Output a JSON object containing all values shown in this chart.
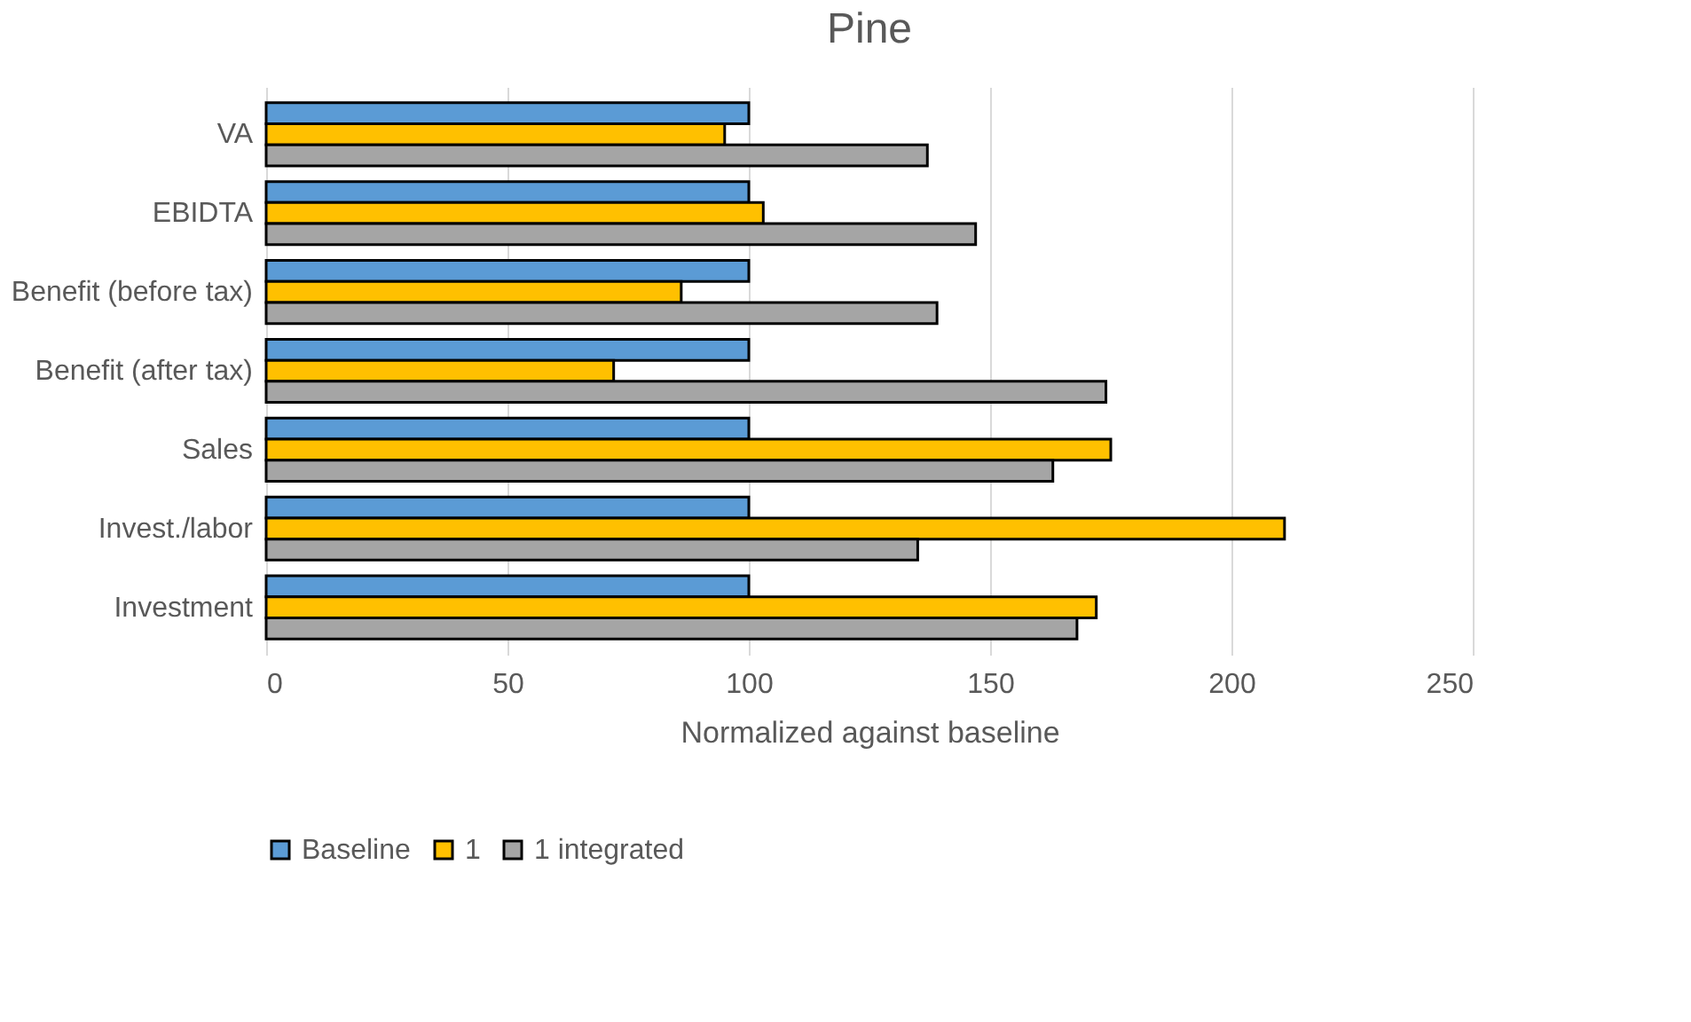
{
  "chart_data": {
    "type": "bar",
    "orientation": "horizontal",
    "title": "Pine",
    "xlabel": "Normalized against baseline",
    "categories": [
      "VA",
      "EBIDTA",
      "Benefit (before tax)",
      "Benefit (after tax)",
      "Sales",
      "Invest./labor",
      "Investment"
    ],
    "series": [
      {
        "name": "Baseline",
        "color": "#5b9bd5",
        "values": [
          100,
          100,
          100,
          100,
          100,
          100,
          100
        ]
      },
      {
        "name": "1",
        "color": "#ffc000",
        "values": [
          95,
          103,
          86,
          72,
          175,
          211,
          172
        ]
      },
      {
        "name": "1 integrated",
        "color": "#a5a5a5",
        "values": [
          137,
          147,
          139,
          174,
          163,
          135,
          168
        ]
      }
    ],
    "xlim": [
      0,
      250
    ],
    "xticks": [
      0,
      50,
      100,
      150,
      200,
      250
    ],
    "grid": "x",
    "legend": "bottom"
  }
}
